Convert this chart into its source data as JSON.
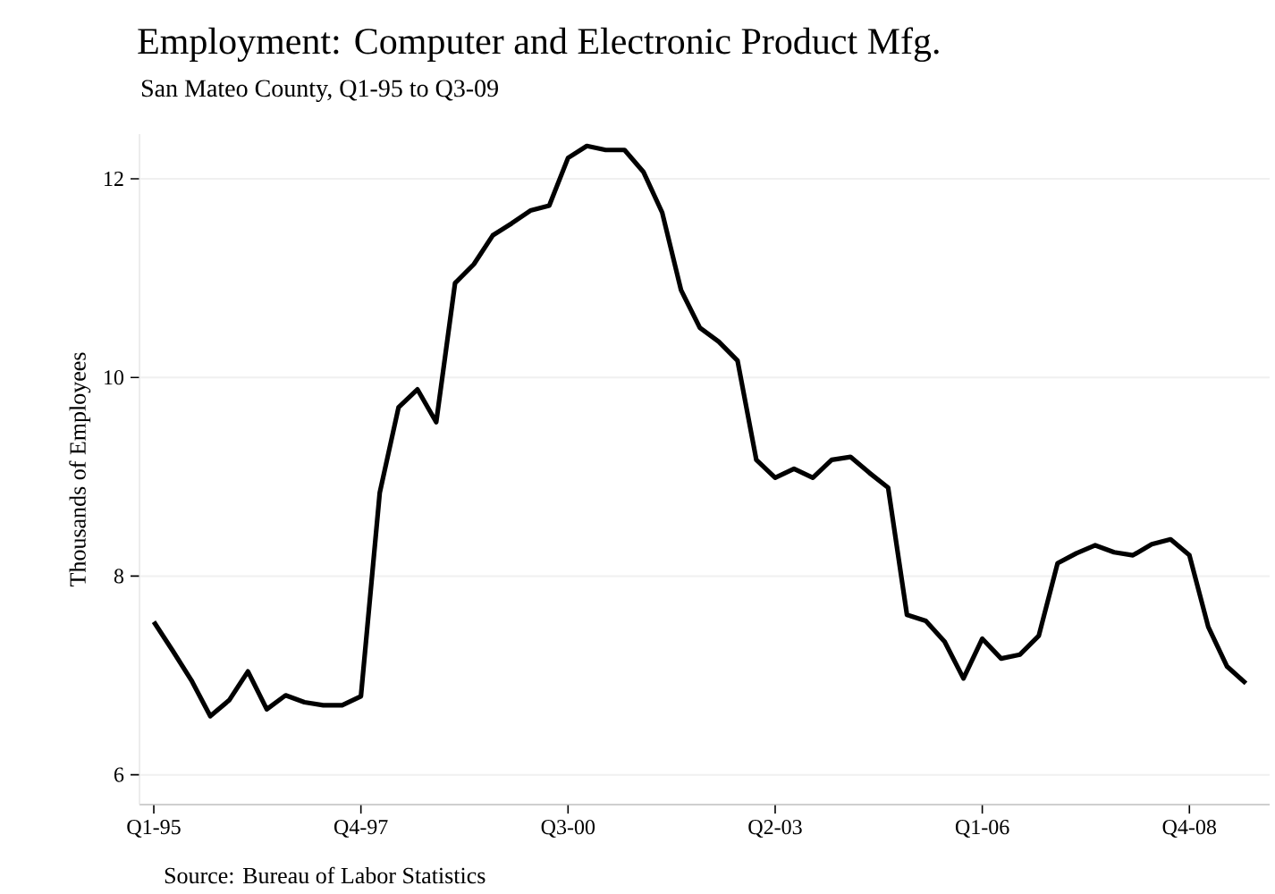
{
  "chart_data": {
    "type": "line",
    "title": "Employment: Computer and Electronic Product Mfg.",
    "subtitle": "San Mateo County, Q1-95 to Q3-09",
    "ylabel": "Thousands of Employees",
    "annotations": [
      "Source: Bureau of Labor Statistics"
    ],
    "categories": [
      "Q1-95",
      null,
      null,
      null,
      null,
      null,
      null,
      null,
      null,
      null,
      null,
      "Q4-97",
      null,
      null,
      null,
      null,
      null,
      null,
      null,
      null,
      null,
      null,
      "Q3-00",
      null,
      null,
      null,
      null,
      null,
      null,
      null,
      null,
      null,
      null,
      "Q2-03",
      null,
      null,
      null,
      null,
      null,
      null,
      null,
      null,
      null,
      null,
      "Q1-06",
      null,
      null,
      null,
      null,
      null,
      null,
      null,
      null,
      null,
      null,
      "Q4-08",
      null,
      null,
      null
    ],
    "series": [
      {
        "color": "#000000",
        "values": [
          7.54,
          7.25,
          6.95,
          6.59,
          6.75,
          7.04,
          6.66,
          6.8,
          6.73,
          6.7,
          6.7,
          6.79,
          8.84,
          9.7,
          9.88,
          9.55,
          10.95,
          11.14,
          11.43,
          11.55,
          11.68,
          11.73,
          12.21,
          12.33,
          12.29,
          12.29,
          12.07,
          11.66,
          10.88,
          10.5,
          10.36,
          10.17,
          9.17,
          8.99,
          9.08,
          8.99,
          9.17,
          9.2,
          9.04,
          8.89,
          7.61,
          7.55,
          7.34,
          6.97,
          7.37,
          7.17,
          7.21,
          7.4,
          8.13,
          8.23,
          8.31,
          8.24,
          8.21,
          8.32,
          8.37,
          8.21,
          7.49,
          7.09,
          6.92
        ]
      }
    ],
    "ylim": [
      5.7,
      12.45
    ],
    "yticks": [
      6,
      8,
      10,
      12
    ],
    "grid": "y",
    "marker": "none",
    "line_style": "solid"
  }
}
